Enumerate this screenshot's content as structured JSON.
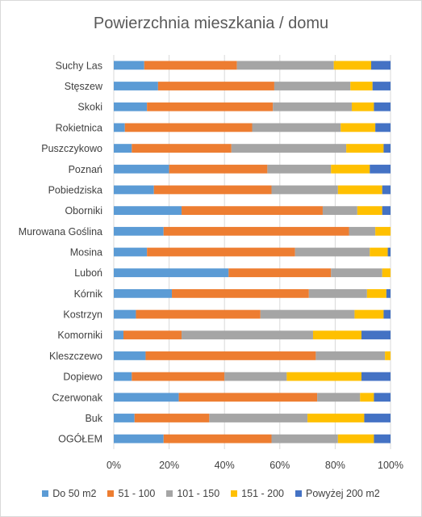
{
  "chart_data": {
    "type": "bar",
    "orientation": "horizontal",
    "stacked": "percent",
    "title": "Powierzchnia mieszkania / domu",
    "xlabel": "",
    "ylabel": "",
    "xlim": [
      0,
      1
    ],
    "x_ticks": [
      "0%",
      "20%",
      "40%",
      "60%",
      "80%",
      "100%"
    ],
    "grid": true,
    "legend_position": "bottom",
    "categories": [
      "Suchy Las",
      "Stęszew",
      "Skoki",
      "Rokietnica",
      "Puszczykowo",
      "Poznań",
      "Pobiedziska",
      "Oborniki",
      "Murowana Goślina",
      "Mosina",
      "Luboń",
      "Kórnik",
      "Kostrzyn",
      "Komorniki",
      "Kleszczewo",
      "Dopiewo",
      "Czerwonak",
      "Buk",
      "OGÓŁEM"
    ],
    "series": [
      {
        "name": "Do 50 m2",
        "color": "#5b9bd5",
        "values": [
          0.11,
          0.16,
          0.12,
          0.04,
          0.065,
          0.2,
          0.145,
          0.245,
          0.18,
          0.12,
          0.415,
          0.21,
          0.08,
          0.035,
          0.115,
          0.065,
          0.235,
          0.075,
          0.18
        ]
      },
      {
        "name": "51 - 100",
        "color": "#ed7d31",
        "values": [
          0.335,
          0.42,
          0.455,
          0.46,
          0.36,
          0.355,
          0.425,
          0.51,
          0.67,
          0.535,
          0.37,
          0.495,
          0.45,
          0.21,
          0.615,
          0.335,
          0.5,
          0.27,
          0.39
        ]
      },
      {
        "name": "101 - 150",
        "color": "#a5a5a5",
        "values": [
          0.35,
          0.275,
          0.285,
          0.32,
          0.415,
          0.23,
          0.24,
          0.125,
          0.095,
          0.27,
          0.185,
          0.21,
          0.34,
          0.475,
          0.25,
          0.225,
          0.155,
          0.355,
          0.24
        ]
      },
      {
        "name": "151 - 200",
        "color": "#ffc000",
        "values": [
          0.135,
          0.08,
          0.08,
          0.125,
          0.135,
          0.14,
          0.16,
          0.09,
          0.055,
          0.065,
          0.03,
          0.07,
          0.105,
          0.175,
          0.02,
          0.27,
          0.05,
          0.205,
          0.13
        ]
      },
      {
        "name": "Powyżej 200 m2",
        "color": "#4472c4",
        "values": [
          0.07,
          0.065,
          0.06,
          0.055,
          0.025,
          0.075,
          0.03,
          0.03,
          0.0,
          0.01,
          0.0,
          0.015,
          0.025,
          0.105,
          0.0,
          0.105,
          0.06,
          0.095,
          0.06
        ]
      }
    ]
  }
}
